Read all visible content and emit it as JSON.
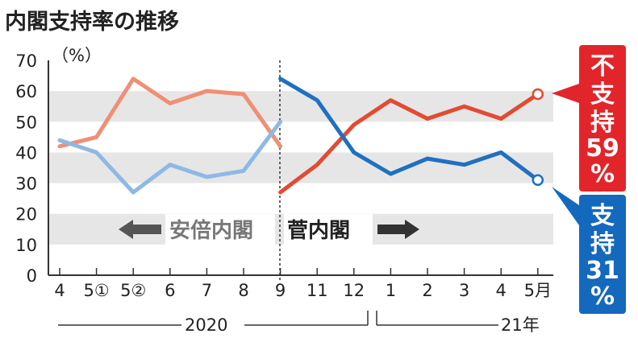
{
  "chart_data": {
    "type": "line",
    "title": "内閣支持率の推移",
    "unit": "（%）",
    "ylim": [
      0,
      70
    ],
    "yticks": [
      "0",
      "10",
      "20",
      "30",
      "40",
      "50",
      "60",
      "70"
    ],
    "categories": [
      "4",
      "5①",
      "5②",
      "6",
      "7",
      "8",
      "9",
      "11",
      "12",
      "1",
      "2",
      "3",
      "4",
      "5月"
    ],
    "year_labels": [
      "2020",
      "21年"
    ],
    "era_labels": {
      "abe": "安倍内閣",
      "suga": "菅内閣"
    },
    "series": [
      {
        "name": "不支持",
        "segments": [
          {
            "era": "abe",
            "values": [
              42,
              45,
              64,
              56,
              60,
              59,
              42
            ],
            "color": "#ef8f74"
          },
          {
            "era": "suga",
            "values": [
              27,
              36,
              49,
              57,
              51,
              55,
              51,
              59
            ],
            "color": "#e24a33"
          }
        ]
      },
      {
        "name": "支持",
        "segments": [
          {
            "era": "abe",
            "values": [
              44,
              40,
              27,
              36,
              32,
              34,
              50
            ],
            "color": "#8eb9e5"
          },
          {
            "era": "suga",
            "values": [
              64,
              57,
              40,
              33,
              38,
              36,
              40,
              31
            ],
            "color": "#1f70c1"
          }
        ]
      }
    ],
    "callouts": {
      "disapprove": {
        "label": "不支持",
        "value": "59",
        "pct": "%",
        "color": "#e2252b"
      },
      "approve": {
        "label": "支持",
        "value": "31",
        "pct": "%",
        "color": "#1569bd"
      }
    },
    "grid_bands": true
  }
}
